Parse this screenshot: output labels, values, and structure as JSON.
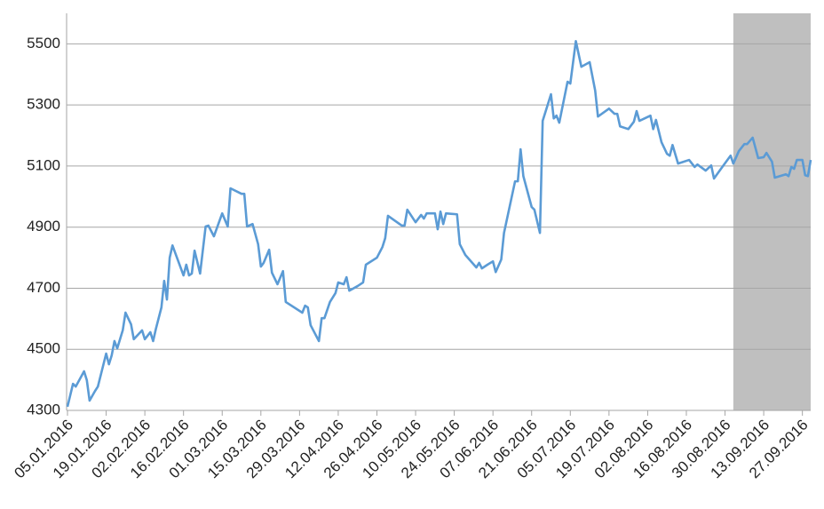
{
  "chart_data": {
    "type": "line",
    "x": [
      "05.01.2016",
      "07.01.2016",
      "08.01.2016",
      "11.01.2016",
      "12.01.2016",
      "13.01.2016",
      "15.01.2016",
      "16.01.2016",
      "19.01.2016",
      "20.01.2016",
      "21.01.2016",
      "22.01.2016",
      "23.01.2016",
      "25.01.2016",
      "26.01.2016",
      "28.01.2016",
      "29.01.2016",
      "01.02.2016",
      "02.02.2016",
      "04.02.2016",
      "05.02.2016",
      "06.02.2016",
      "08.02.2016",
      "09.02.2016",
      "10.02.2016",
      "11.02.2016",
      "12.02.2016",
      "16.02.2016",
      "17.02.2016",
      "18.02.2016",
      "19.02.2016",
      "20.02.2016",
      "22.02.2016",
      "24.02.2016",
      "25.02.2016",
      "27.02.2016",
      "01.03.2016",
      "03.03.2016",
      "04.03.2016",
      "08.03.2016",
      "09.03.2016",
      "10.03.2016",
      "12.03.2016",
      "14.03.2016",
      "15.03.2016",
      "16.03.2016",
      "18.03.2016",
      "19.03.2016",
      "21.03.2016",
      "23.03.2016",
      "24.03.2016",
      "30.03.2016",
      "31.03.2016",
      "01.04.2016",
      "02.04.2016",
      "05.04.2016",
      "06.04.2016",
      "07.04.2016",
      "09.04.2016",
      "11.04.2016",
      "12.04.2016",
      "14.04.2016",
      "15.04.2016",
      "16.04.2016",
      "19.04.2016",
      "21.04.2016",
      "22.04.2016",
      "26.04.2016",
      "28.04.2016",
      "29.04.2016",
      "30.04.2016",
      "05.05.2016",
      "06.05.2016",
      "07.05.2016",
      "10.05.2016",
      "12.05.2016",
      "13.05.2016",
      "14.05.2016",
      "17.05.2016",
      "18.05.2016",
      "19.05.2016",
      "20.05.2016",
      "21.05.2016",
      "25.05.2016",
      "26.05.2016",
      "28.05.2016",
      "01.06.2016",
      "02.06.2016",
      "03.06.2016",
      "05.06.2016",
      "07.06.2016",
      "08.06.2016",
      "10.06.2016",
      "11.06.2016",
      "15.06.2016",
      "16.06.2016",
      "17.06.2016",
      "18.06.2016",
      "21.06.2016",
      "22.06.2016",
      "24.06.2016",
      "25.06.2016",
      "28.06.2016",
      "29.06.2016",
      "30.06.2016",
      "01.07.2016",
      "04.07.2016",
      "05.07.2016",
      "07.07.2016",
      "09.07.2016",
      "12.07.2016",
      "14.07.2016",
      "15.07.2016",
      "19.07.2016",
      "21.07.2016",
      "22.07.2016",
      "23.07.2016",
      "26.07.2016",
      "28.07.2016",
      "29.07.2016",
      "30.07.2016",
      "03.08.2016",
      "04.08.2016",
      "05.08.2016",
      "07.08.2016",
      "09.08.2016",
      "10.08.2016",
      "11.08.2016",
      "13.08.2016",
      "17.08.2016",
      "19.08.2016",
      "20.08.2016",
      "23.08.2016",
      "25.08.2016",
      "26.08.2016",
      "29.08.2016",
      "01.09.2016",
      "02.09.2016",
      "04.09.2016",
      "06.09.2016",
      "07.09.2016",
      "09.09.2016",
      "11.09.2016",
      "13.09.2016",
      "14.09.2016",
      "16.09.2016",
      "17.09.2016",
      "21.09.2016",
      "22.09.2016",
      "23.09.2016",
      "24.09.2016",
      "25.09.2016",
      "27.09.2016",
      "28.09.2016",
      "29.09.2016",
      "30.09.2016"
    ],
    "series": [
      {
        "color": "#5b9bd5",
        "values": [
          4312,
          4387,
          4378,
          4428,
          4399,
          4332,
          4364,
          4378,
          4486,
          4451,
          4480,
          4527,
          4503,
          4562,
          4620,
          4582,
          4533,
          4562,
          4533,
          4556,
          4527,
          4567,
          4637,
          4724,
          4663,
          4800,
          4840,
          4742,
          4777,
          4742,
          4748,
          4823,
          4748,
          4902,
          4905,
          4870,
          4945,
          4902,
          5027,
          5009,
          5009,
          4902,
          4910,
          4844,
          4771,
          4783,
          4826,
          4751,
          4713,
          4756,
          4655,
          4620,
          4643,
          4637,
          4579,
          4527,
          4602,
          4602,
          4655,
          4684,
          4719,
          4713,
          4736,
          4692,
          4707,
          4719,
          4777,
          4800,
          4835,
          4864,
          4937,
          4905,
          4905,
          4957,
          4916,
          4940,
          4928,
          4945,
          4945,
          4893,
          4951,
          4910,
          4945,
          4942,
          4844,
          4809,
          4768,
          4783,
          4765,
          4777,
          4788,
          4753,
          4794,
          4881,
          5050,
          5050,
          5155,
          5067,
          4966,
          4957,
          4881,
          5248,
          5335,
          5256,
          5265,
          5242,
          5376,
          5370,
          5509,
          5425,
          5440,
          5347,
          5262,
          5288,
          5271,
          5271,
          5230,
          5221,
          5245,
          5280,
          5248,
          5265,
          5221,
          5251,
          5178,
          5140,
          5134,
          5169,
          5108,
          5120,
          5097,
          5105,
          5085,
          5102,
          5059,
          5097,
          5134,
          5108,
          5149,
          5172,
          5172,
          5193,
          5126,
          5129,
          5143,
          5114,
          5062,
          5073,
          5067,
          5097,
          5091,
          5120,
          5120,
          5070,
          5067,
          5120
        ]
      }
    ],
    "xlim": [
      "05.01.2016",
      "30.09.2016"
    ],
    "xticks": [
      "05.01.2016",
      "19.01.2016",
      "02.02.2016",
      "16.02.2016",
      "01.03.2016",
      "15.03.2016",
      "29.03.2016",
      "12.04.2016",
      "26.04.2016",
      "10.05.2016",
      "24.05.2016",
      "07.06.2016",
      "21.06.2016",
      "05.07.2016",
      "19.07.2016",
      "02.08.2016",
      "16.08.2016",
      "30.08.2016",
      "13.09.2016",
      "27.09.2016"
    ],
    "ylim": [
      4300,
      5600
    ],
    "yticks": [
      4300,
      4500,
      4700,
      4900,
      5100,
      5300,
      5500
    ],
    "grid": true,
    "shaded_span": {
      "from": "02.09.2016",
      "to": "30.09.2016",
      "color": "#bfbfbf"
    }
  }
}
